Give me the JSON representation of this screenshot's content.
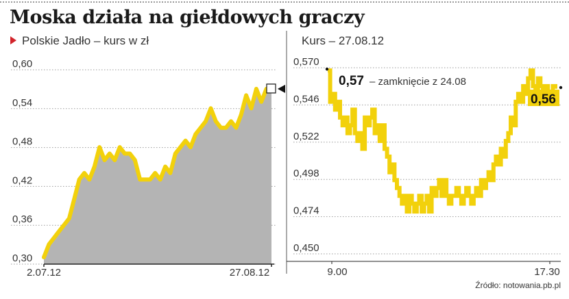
{
  "title": "Moska działa na giełdowych graczy",
  "source": "Źródło: notowania.pb.pl",
  "colors": {
    "line": "#f2d10c",
    "area": "#b4b4b4",
    "marker": "#d2232a",
    "text": "#333333",
    "grid": "#9a9a9a"
  },
  "chart_data": [
    {
      "type": "area",
      "subtitle": "Polskie Jadło – kurs w zł",
      "ylim": [
        0.3,
        0.6
      ],
      "yticks": [
        "0,60",
        "0,54",
        "0,48",
        "0,42",
        "0,36",
        "0,30"
      ],
      "yticks_values": [
        0.6,
        0.54,
        0.48,
        0.42,
        0.36,
        0.3
      ],
      "xticks": [
        "2.07.12",
        "27.08.12"
      ],
      "grid": "dotted horizontal",
      "values": [
        0.3,
        0.32,
        0.33,
        0.34,
        0.35,
        0.36,
        0.39,
        0.42,
        0.43,
        0.42,
        0.44,
        0.47,
        0.45,
        0.46,
        0.45,
        0.47,
        0.46,
        0.46,
        0.45,
        0.42,
        0.42,
        0.42,
        0.43,
        0.42,
        0.44,
        0.43,
        0.46,
        0.47,
        0.48,
        0.47,
        0.49,
        0.5,
        0.51,
        0.53,
        0.51,
        0.5,
        0.5,
        0.51,
        0.5,
        0.52,
        0.55,
        0.53,
        0.56,
        0.54,
        0.56,
        0.56
      ]
    },
    {
      "type": "line",
      "subtitle": "Kurs – 27.08.12",
      "ylim": [
        0.45,
        0.57
      ],
      "yticks": [
        "0,570",
        "0,546",
        "0,522",
        "0,498",
        "0,474",
        "0,450"
      ],
      "yticks_values": [
        0.57,
        0.546,
        0.522,
        0.498,
        0.474,
        0.45
      ],
      "xticks": [
        "9.00",
        "17.30"
      ],
      "grid": "dotted horizontal",
      "annotations": [
        {
          "value": "0,57",
          "text": "– zamknięcie z 24.08"
        },
        {
          "value": "0,56",
          "text": ""
        }
      ],
      "values": [
        0.57,
        0.546,
        0.552,
        0.54,
        0.546,
        0.534,
        0.528,
        0.534,
        0.522,
        0.528,
        0.54,
        0.522,
        0.516,
        0.522,
        0.51,
        0.534,
        0.528,
        0.534,
        0.54,
        0.522,
        0.528,
        0.516,
        0.528,
        0.51,
        0.504,
        0.492,
        0.498,
        0.486,
        0.48,
        0.474,
        0.468,
        0.474,
        0.462,
        0.474,
        0.468,
        0.462,
        0.468,
        0.474,
        0.462,
        0.468,
        0.474,
        0.462,
        0.48,
        0.474,
        0.48,
        0.486,
        0.474,
        0.486,
        0.474,
        0.468,
        0.474,
        0.474,
        0.48,
        0.474,
        0.468,
        0.474,
        0.48,
        0.474,
        0.468,
        0.474,
        0.48,
        0.474,
        0.486,
        0.48,
        0.486,
        0.492,
        0.486,
        0.498,
        0.504,
        0.498,
        0.51,
        0.504,
        0.516,
        0.522,
        0.534,
        0.528,
        0.546,
        0.552,
        0.546,
        0.558,
        0.552,
        0.564,
        0.57,
        0.558,
        0.552,
        0.564,
        0.558,
        0.552,
        0.558,
        0.552,
        0.552,
        0.558,
        0.556
      ]
    }
  ]
}
